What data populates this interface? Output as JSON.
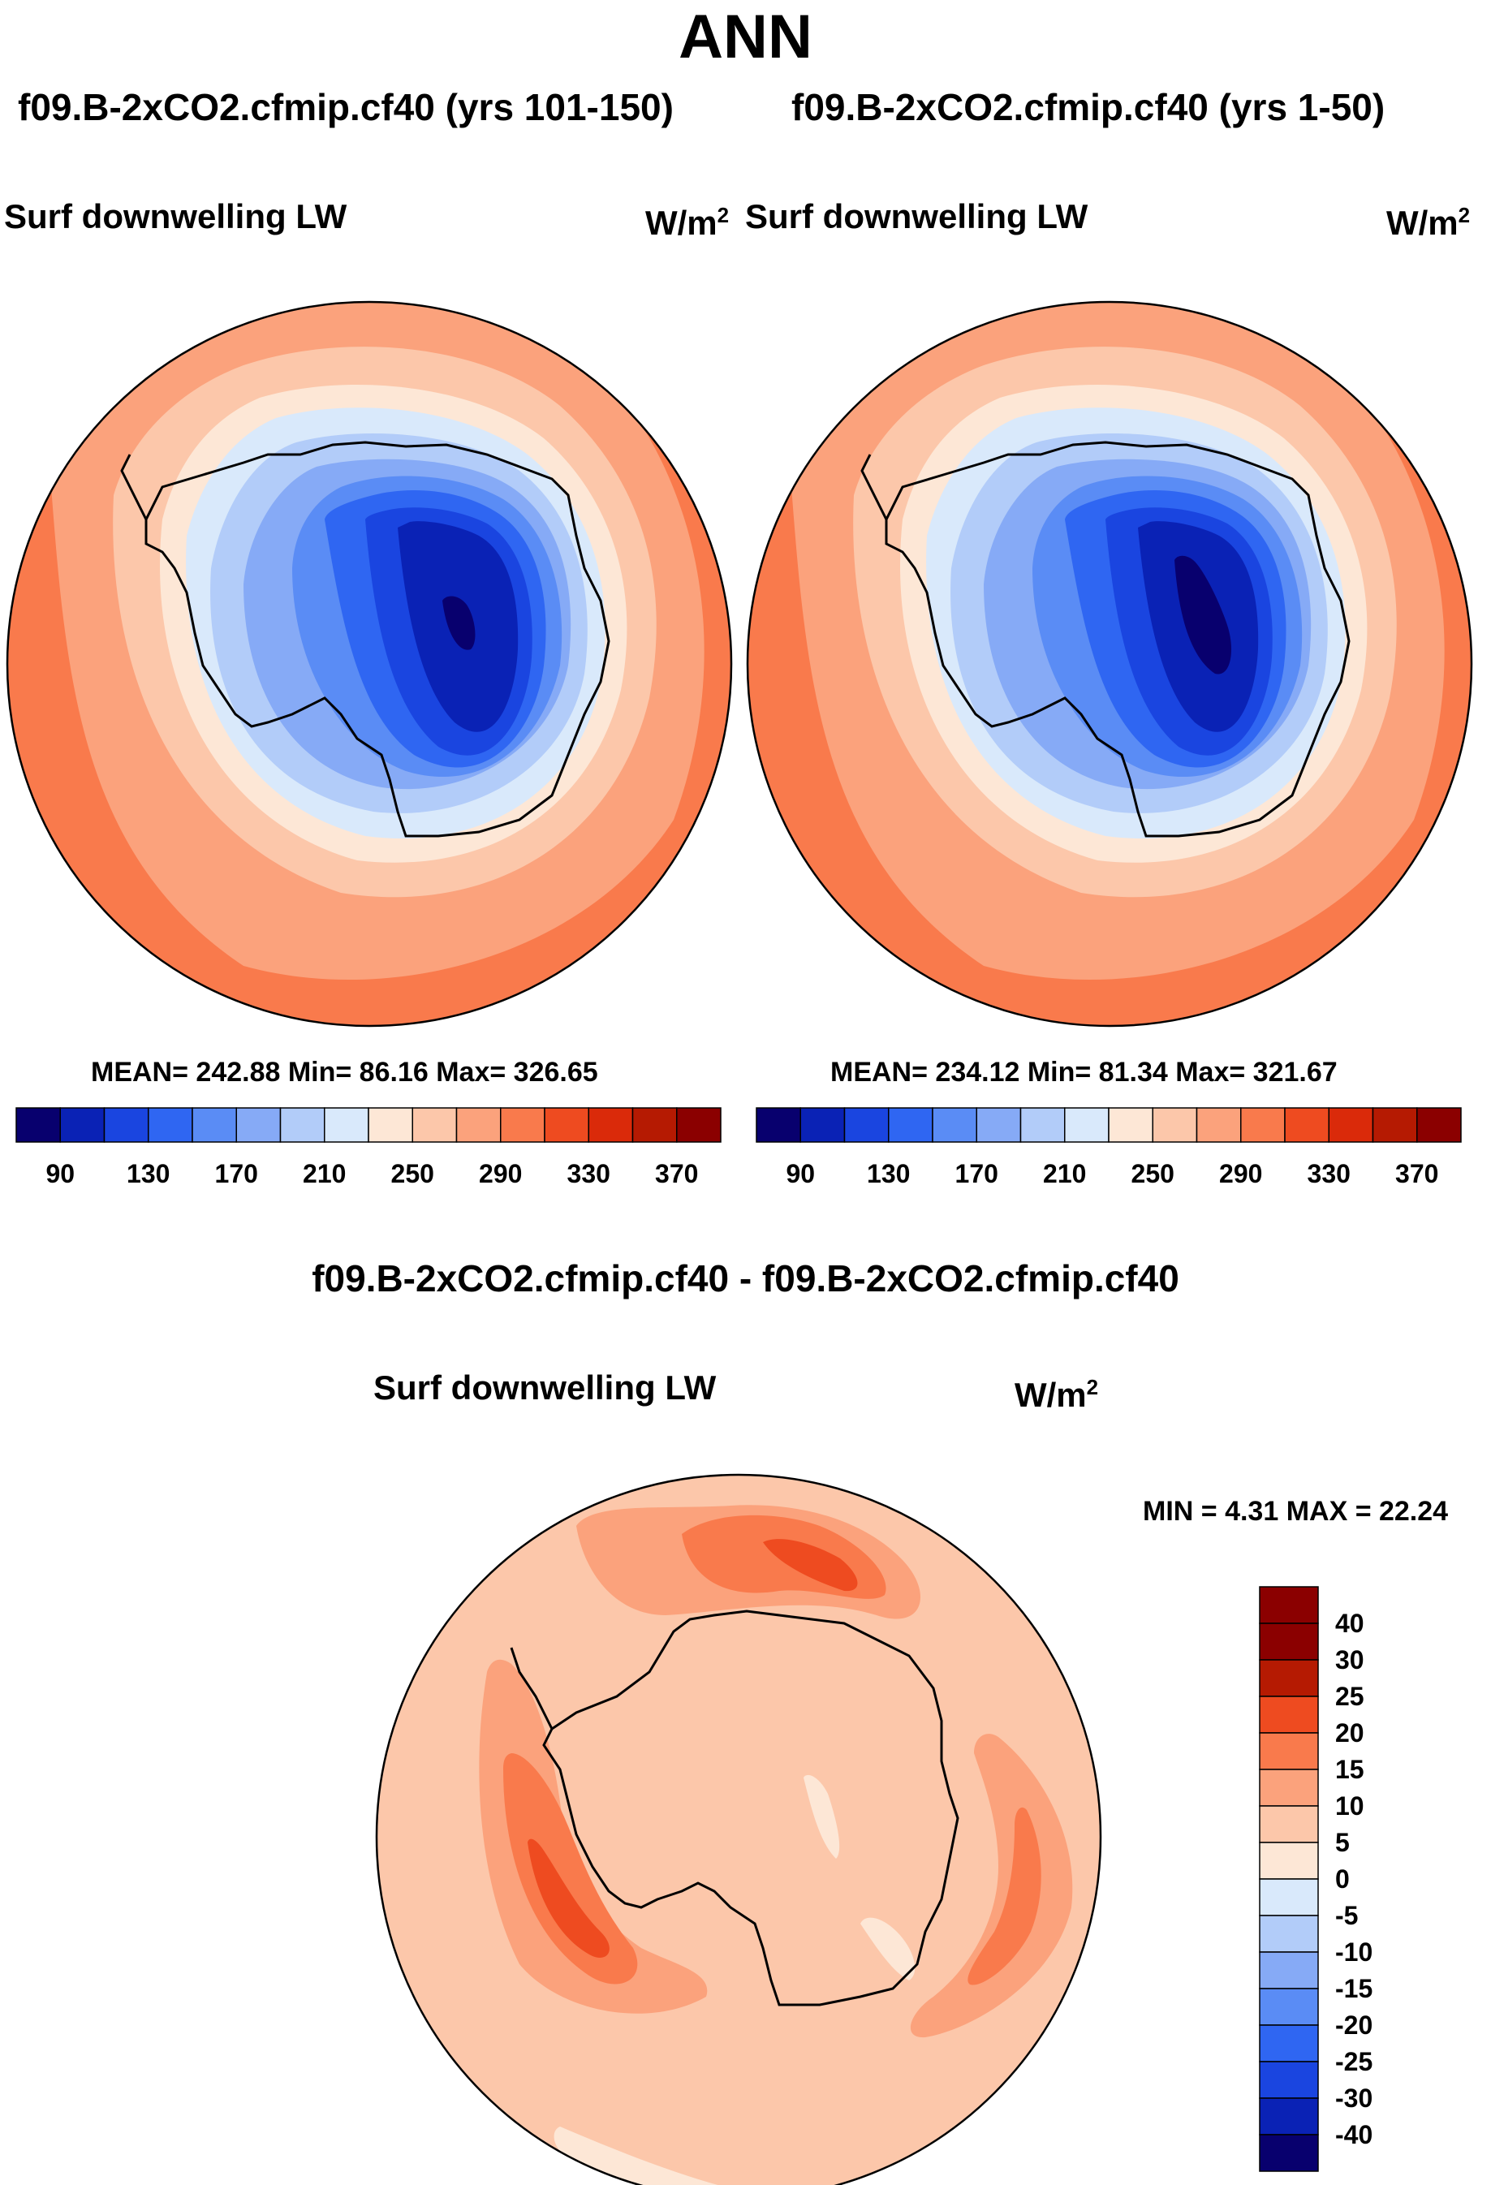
{
  "title": "ANN",
  "panels": [
    {
      "case_label": "f09.B-2xCO2.cfmip.cf40 (yrs 101-150)",
      "variable": "Surf downwelling LW",
      "units_base": "W/m",
      "units_exp": "2",
      "stats": "MEAN= 242.88  Min=  86.16  Max= 326.65",
      "colorbar_ticks": [
        "90",
        "130",
        "170",
        "210",
        "250",
        "290",
        "330",
        "370"
      ]
    },
    {
      "case_label": "f09.B-2xCO2.cfmip.cf40 (yrs 1-50)",
      "variable": "Surf downwelling LW",
      "units_base": "W/m",
      "units_exp": "2",
      "stats": "MEAN= 234.12  Min=  81.34  Max= 321.67",
      "colorbar_ticks": [
        "90",
        "130",
        "170",
        "210",
        "250",
        "290",
        "330",
        "370"
      ]
    }
  ],
  "difference": {
    "case_label": "f09.B-2xCO2.cfmip.cf40 - f09.B-2xCO2.cfmip.cf40",
    "variable": "Surf downwelling LW",
    "units_base": "W/m",
    "units_exp": "2",
    "stats": "MIN =   4.31 MAX =  22.24",
    "colorbar_ticks": [
      "40",
      "30",
      "25",
      "20",
      "15",
      "10",
      "5",
      "0",
      "-5",
      "-10",
      "-15",
      "-20",
      "-25",
      "-30",
      "-40"
    ]
  },
  "colors": {
    "abs_scale": [
      "#08006e",
      "#0a22b5",
      "#1a45e0",
      "#2f66f2",
      "#5a8cf5",
      "#86aaf6",
      "#b2ccf9",
      "#d9e9fb",
      "#fde7d6",
      "#fcc7aa",
      "#fba27c",
      "#f97a4c",
      "#ee4b20",
      "#da2a0a",
      "#b51a02",
      "#8b0000"
    ],
    "diff_scale": [
      "#8b0000",
      "#b51a02",
      "#ee4b20",
      "#f97a4c",
      "#fba27c",
      "#fcc7aa",
      "#fde7d6",
      "#d9e9fb",
      "#b2ccf9",
      "#86aaf6",
      "#5a8cf5",
      "#2f66f2",
      "#1a45e0",
      "#0a22b5",
      "#08006e"
    ]
  }
}
